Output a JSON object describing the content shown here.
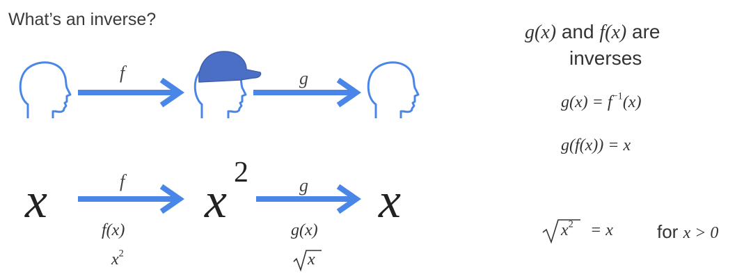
{
  "slide": {
    "title": "What’s an inverse?"
  },
  "diagram": {
    "top_row": {
      "f_label": "f",
      "g_label": "g"
    },
    "bottom_row": {
      "left": "x",
      "middle_base": "x",
      "middle_exp": "2",
      "right": "x",
      "f_label": "f",
      "g_label": "g",
      "f_func": "f(x)",
      "f_result_base": "x",
      "f_result_exp": "2",
      "g_func": "g(x)",
      "g_result": "x"
    },
    "colors": {
      "arrow": "#4a86e8",
      "cap": "#4a6fc4",
      "head_outline": "#4a86e8"
    },
    "icons": [
      "head-icon",
      "head-with-cap-icon",
      "head-icon"
    ]
  },
  "notes": {
    "line1_g": "g(x)",
    "line1_and": "and",
    "line1_f": "f(x)",
    "line1_are": "are",
    "line2": "inverses",
    "eq1_lhs": "g(x) = f",
    "eq1_sup": "−1",
    "eq1_rhs": "(x)",
    "eq2": "g(f(x)) = x",
    "sqrt_var": "x",
    "sqrt_exp": "2",
    "sqrt_rhs": "= x",
    "condition_for": "for",
    "condition_expr": "x > 0"
  }
}
